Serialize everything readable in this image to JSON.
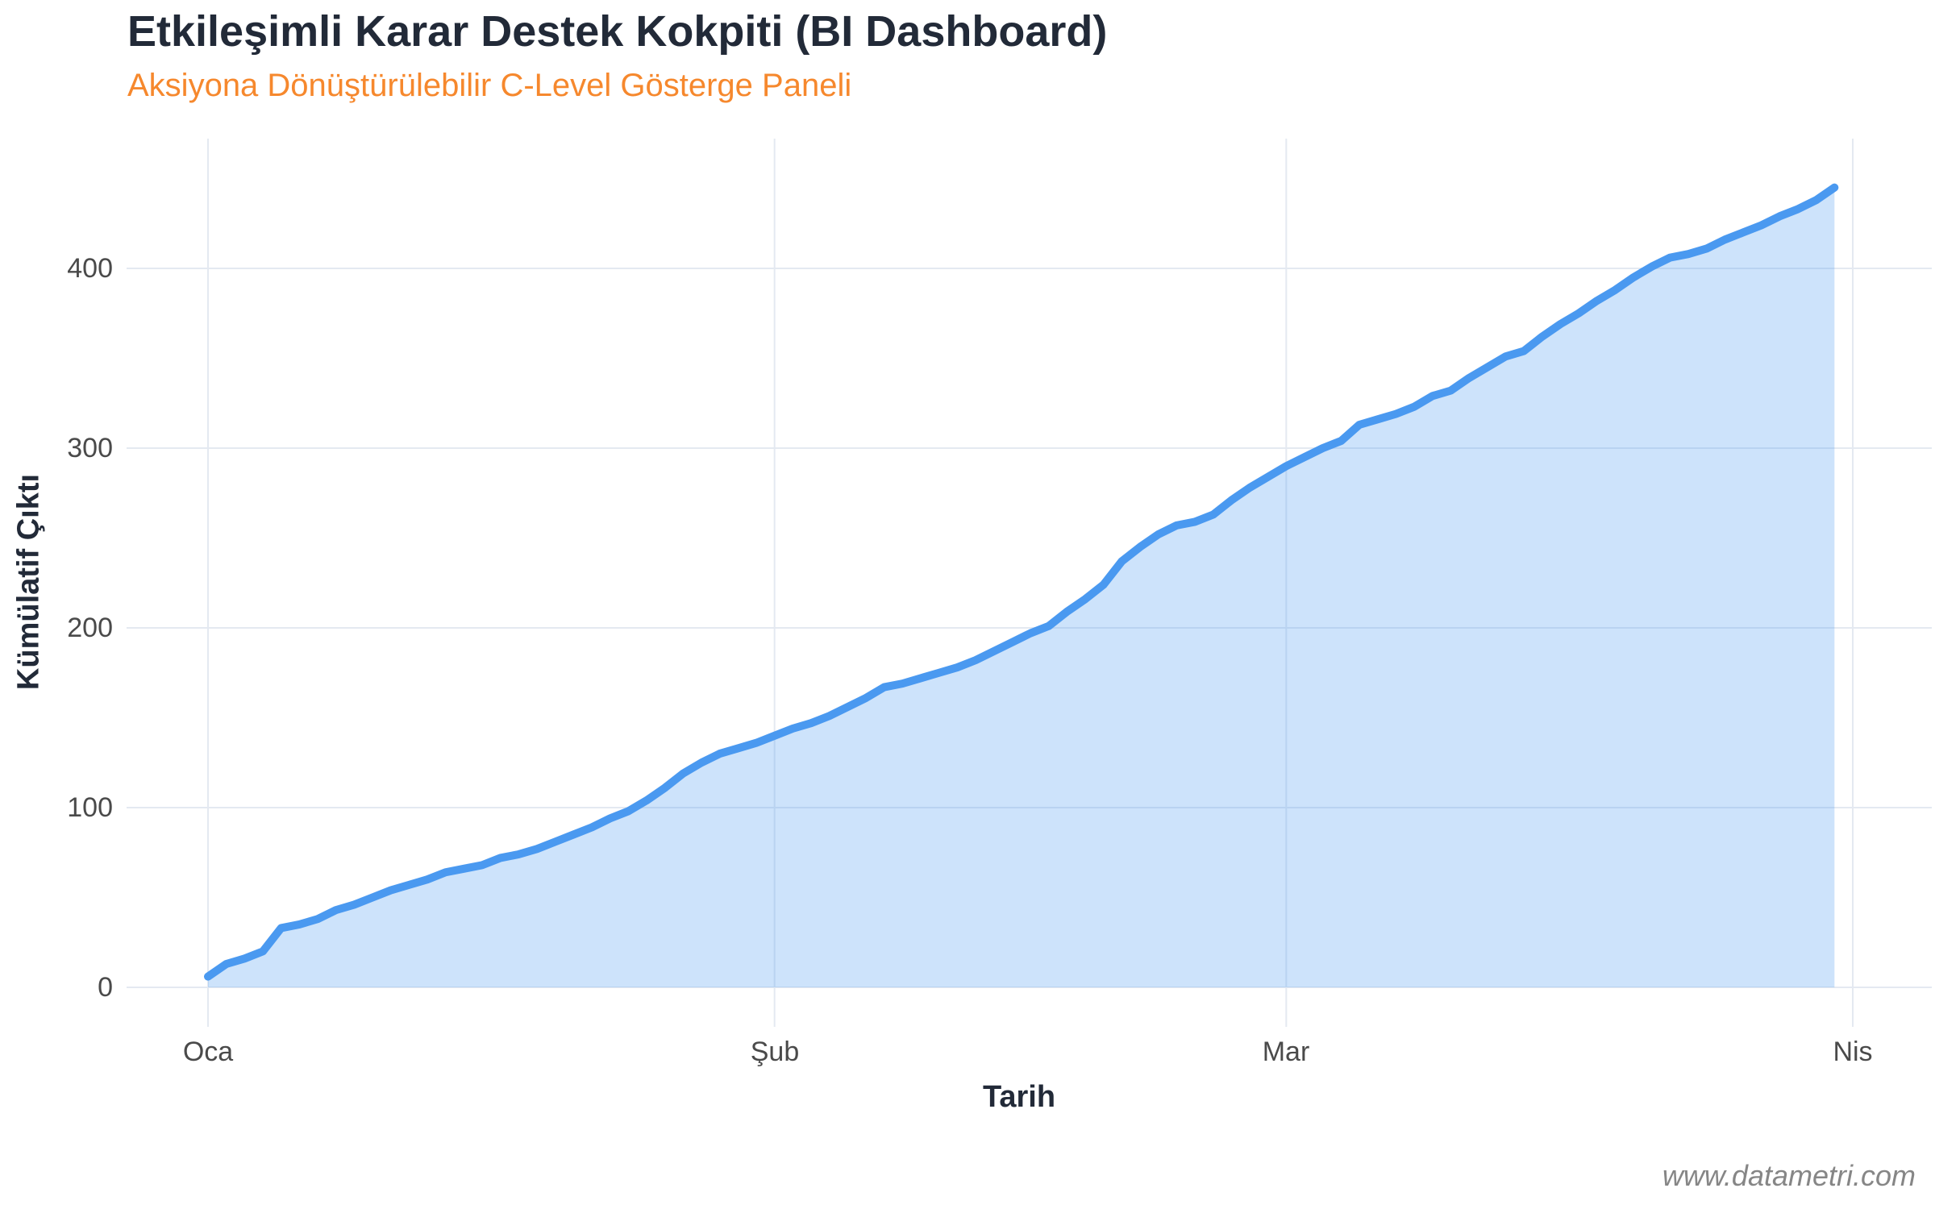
{
  "header": {
    "title": "Etkileşimli Karar Destek Kokpiti (BI Dashboard)",
    "subtitle": "Aksiyona Dönüştürülebilir C-Level Gösterge Paneli"
  },
  "watermark": "www.datametri.com",
  "chart_data": {
    "type": "area",
    "title": "Etkileşimli Karar Destek Kokpiti (BI Dashboard)",
    "subtitle": "Aksiyona Dönüştürülebilir C-Level Gösterge Paneli",
    "xlabel": "Tarih",
    "ylabel": "Kümülatif Çıktı",
    "x_axis": "daily dates from Oca (Jan) to Nis (Apr), 90 days",
    "x_ticks": [
      {
        "day": 0,
        "label": "Oca"
      },
      {
        "day": 31,
        "label": "Şub"
      },
      {
        "day": 59,
        "label": "Mar"
      },
      {
        "day": 90,
        "label": "Nis"
      }
    ],
    "y_ticks": [
      {
        "value": 0,
        "label": "0"
      },
      {
        "value": 100,
        "label": "100"
      },
      {
        "value": 200,
        "label": "200"
      },
      {
        "value": 300,
        "label": "300"
      },
      {
        "value": 400,
        "label": "400"
      }
    ],
    "ylim": [
      0,
      473
    ],
    "grid": true,
    "legend": false,
    "series": [
      {
        "name": "Kümülatif Çıktı",
        "values": [
          6,
          13,
          16,
          20,
          33,
          35,
          38,
          43,
          46,
          50,
          54,
          57,
          60,
          64,
          66,
          68,
          72,
          74,
          77,
          81,
          85,
          89,
          94,
          98,
          104,
          111,
          119,
          125,
          130,
          133,
          136,
          140,
          144,
          147,
          151,
          156,
          161,
          167,
          169,
          172,
          175,
          178,
          182,
          187,
          192,
          197,
          201,
          209,
          216,
          224,
          237,
          245,
          252,
          257,
          259,
          263,
          271,
          278,
          284,
          290,
          295,
          300,
          304,
          313,
          316,
          319,
          323,
          329,
          332,
          339,
          345,
          351,
          354,
          362,
          369,
          375,
          382,
          388,
          395,
          401,
          406,
          408,
          411,
          416,
          420,
          424,
          429,
          433,
          438,
          445
        ]
      }
    ],
    "colors": {
      "line": "#4A99F0",
      "fill": "rgba(74,153,240,0.28)",
      "grid": "#E4E9F1",
      "tick_label": "#4A4A4A",
      "axis_title": "#222A38",
      "title": "#222A38",
      "subtitle": "#F6882D"
    }
  }
}
